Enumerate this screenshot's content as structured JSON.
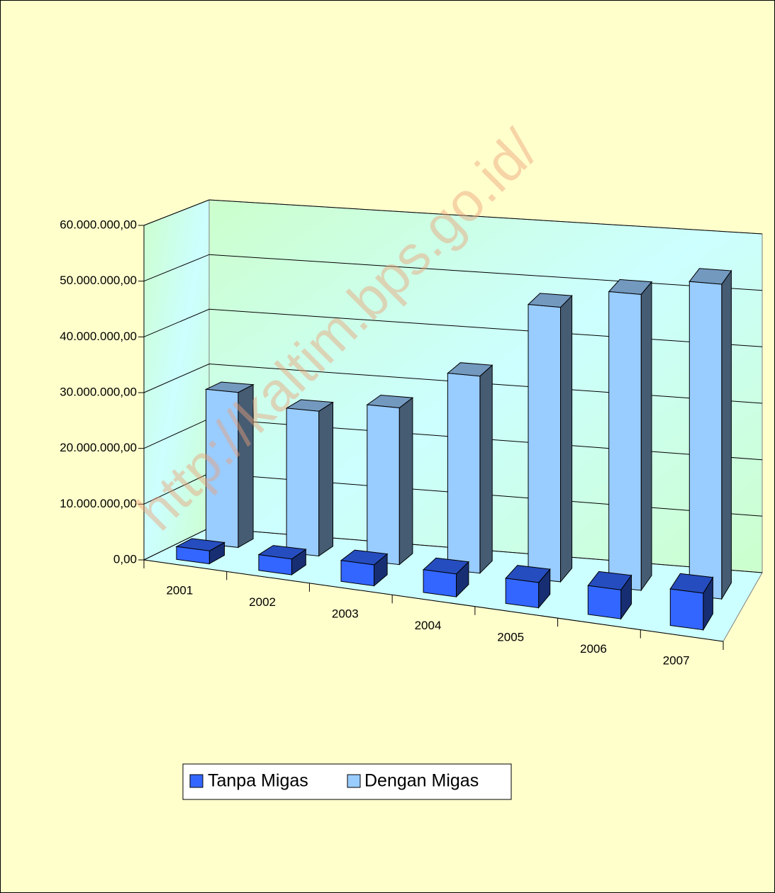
{
  "chart_data": {
    "type": "bar",
    "watermark": "http://kaltim.bps.go.id/",
    "categories": [
      "2001",
      "2002",
      "2003",
      "2004",
      "2005",
      "2006",
      "2007"
    ],
    "series": [
      {
        "name": "Tanpa Migas",
        "color": "#3366ff",
        "values": [
          2300000,
          2800000,
          3700000,
          4000000,
          4400000,
          5000000,
          6300000
        ]
      },
      {
        "name": "Dengan Migas",
        "color": "#99ccff",
        "values": [
          28000000,
          26000000,
          28000000,
          35000000,
          48500000,
          52000000,
          55000000
        ]
      }
    ],
    "ylim": [
      0,
      60000000
    ],
    "yticks": [
      {
        "value": 0,
        "label": "0,00"
      },
      {
        "value": 10000000,
        "label": "10.000.000,00"
      },
      {
        "value": 20000000,
        "label": "20.000.000,00"
      },
      {
        "value": 30000000,
        "label": "30.000.000,00"
      },
      {
        "value": 40000000,
        "label": "40.000.000,00"
      },
      {
        "value": 50000000,
        "label": "50.000.000,00"
      },
      {
        "value": 60000000,
        "label": "60.000.000,00"
      }
    ],
    "grid": true
  }
}
